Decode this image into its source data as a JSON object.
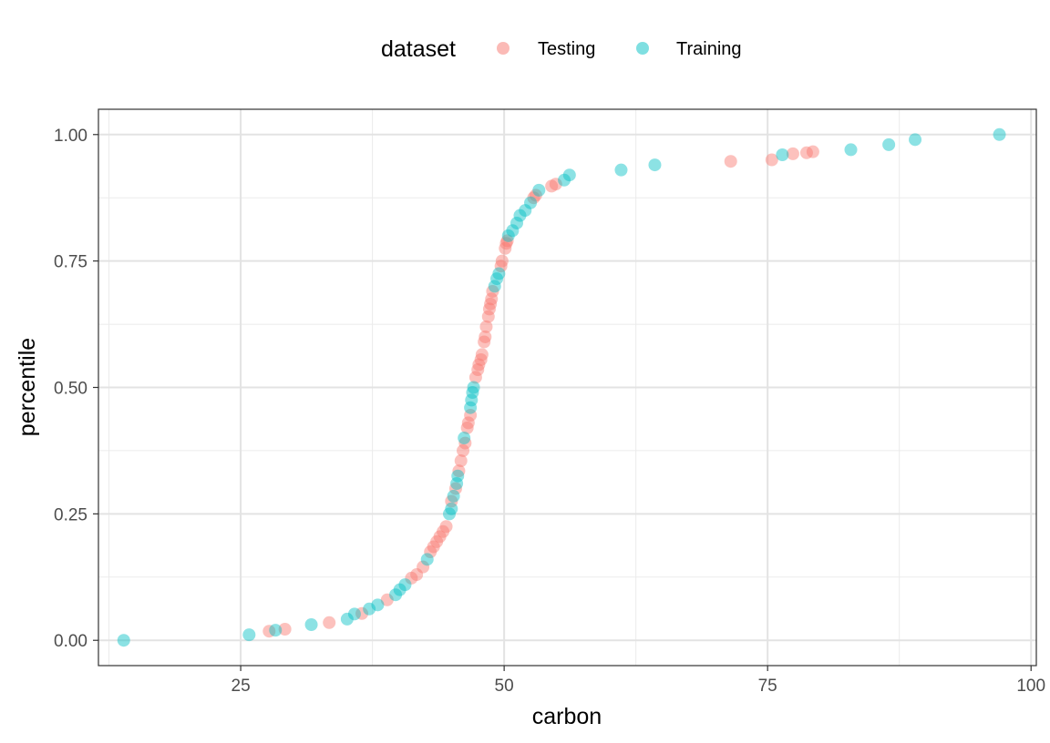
{
  "chart_data": {
    "type": "scatter",
    "xlabel": "carbon",
    "ylabel": "percentile",
    "xlim": [
      11.5,
      100.5
    ],
    "ylim": [
      -0.05,
      1.05
    ],
    "x_ticks": [
      25,
      50,
      75,
      100
    ],
    "x_tick_labels": [
      "25",
      "50",
      "75",
      "100"
    ],
    "y_ticks": [
      0.0,
      0.25,
      0.5,
      0.75,
      1.0
    ],
    "y_tick_labels": [
      "0.00",
      "0.25",
      "0.50",
      "0.75",
      "1.00"
    ],
    "grid": true,
    "legend": {
      "title": "dataset",
      "position": "top",
      "entries": [
        "Testing",
        "Training"
      ]
    },
    "series": [
      {
        "name": "Testing",
        "color": "#F8766D",
        "points": [
          [
            27.7,
            0.018
          ],
          [
            29.2,
            0.022
          ],
          [
            33.4,
            0.035
          ],
          [
            36.5,
            0.053
          ],
          [
            38.9,
            0.08
          ],
          [
            41.2,
            0.123
          ],
          [
            41.7,
            0.13
          ],
          [
            42.3,
            0.145
          ],
          [
            43.0,
            0.175
          ],
          [
            43.3,
            0.185
          ],
          [
            43.6,
            0.195
          ],
          [
            43.9,
            0.205
          ],
          [
            44.2,
            0.215
          ],
          [
            44.5,
            0.225
          ],
          [
            45.0,
            0.275
          ],
          [
            45.4,
            0.3
          ],
          [
            45.7,
            0.335
          ],
          [
            45.9,
            0.355
          ],
          [
            46.1,
            0.375
          ],
          [
            46.3,
            0.39
          ],
          [
            46.5,
            0.42
          ],
          [
            46.6,
            0.43
          ],
          [
            46.8,
            0.445
          ],
          [
            47.3,
            0.52
          ],
          [
            47.5,
            0.535
          ],
          [
            47.6,
            0.545
          ],
          [
            47.8,
            0.555
          ],
          [
            47.9,
            0.565
          ],
          [
            48.1,
            0.59
          ],
          [
            48.2,
            0.6
          ],
          [
            48.3,
            0.62
          ],
          [
            48.5,
            0.64
          ],
          [
            48.6,
            0.655
          ],
          [
            48.7,
            0.665
          ],
          [
            48.8,
            0.675
          ],
          [
            48.9,
            0.69
          ],
          [
            49.7,
            0.74
          ],
          [
            49.8,
            0.75
          ],
          [
            50.1,
            0.775
          ],
          [
            50.2,
            0.785
          ],
          [
            50.3,
            0.79
          ],
          [
            52.8,
            0.875
          ],
          [
            53.0,
            0.88
          ],
          [
            54.5,
            0.898
          ],
          [
            54.9,
            0.902
          ],
          [
            71.5,
            0.947
          ],
          [
            75.4,
            0.95
          ],
          [
            77.4,
            0.962
          ],
          [
            78.7,
            0.964
          ],
          [
            79.3,
            0.966
          ]
        ]
      },
      {
        "name": "Training",
        "color": "#00BFC4",
        "points": [
          [
            13.9,
            0.0
          ],
          [
            25.8,
            0.011
          ],
          [
            28.3,
            0.02
          ],
          [
            31.7,
            0.031
          ],
          [
            35.1,
            0.042
          ],
          [
            35.8,
            0.052
          ],
          [
            37.2,
            0.062
          ],
          [
            38.0,
            0.07
          ],
          [
            39.7,
            0.09
          ],
          [
            40.1,
            0.1
          ],
          [
            40.6,
            0.11
          ],
          [
            42.7,
            0.16
          ],
          [
            44.8,
            0.25
          ],
          [
            45.0,
            0.26
          ],
          [
            45.2,
            0.285
          ],
          [
            45.5,
            0.31
          ],
          [
            45.6,
            0.325
          ],
          [
            46.2,
            0.4
          ],
          [
            46.8,
            0.46
          ],
          [
            46.9,
            0.475
          ],
          [
            47.0,
            0.49
          ],
          [
            47.1,
            0.5
          ],
          [
            49.1,
            0.7
          ],
          [
            49.3,
            0.715
          ],
          [
            49.5,
            0.725
          ],
          [
            50.4,
            0.8
          ],
          [
            50.8,
            0.81
          ],
          [
            51.2,
            0.825
          ],
          [
            51.5,
            0.84
          ],
          [
            52.0,
            0.85
          ],
          [
            52.5,
            0.865
          ],
          [
            53.3,
            0.89
          ],
          [
            55.7,
            0.91
          ],
          [
            56.2,
            0.92
          ],
          [
            61.1,
            0.93
          ],
          [
            64.3,
            0.94
          ],
          [
            76.4,
            0.96
          ],
          [
            82.9,
            0.97
          ],
          [
            86.5,
            0.98
          ],
          [
            89.0,
            0.99
          ],
          [
            97.0,
            1.0
          ]
        ]
      }
    ]
  }
}
